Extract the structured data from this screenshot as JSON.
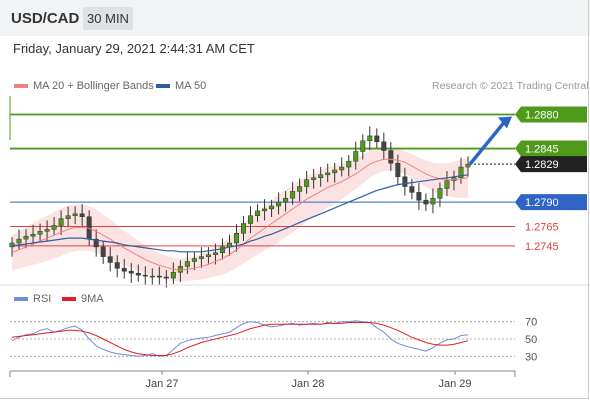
{
  "header": {
    "symbol": "USD/CAD",
    "timeframe": "30 MIN",
    "datetime": "Friday, January 29, 2021 2:44:31 AM CET"
  },
  "legend": {
    "ma20": "MA 20 + Bollinger Bands",
    "ma50": "MA 50",
    "ma20_color": "#f08080",
    "ma50_color": "#2f5f9f",
    "rsi": "RSI",
    "rsi9": "9MA",
    "rsi_color": "#6b8ed6",
    "rsi9_color": "#e02020"
  },
  "watermark": "Research © 2021 Trading Central",
  "chart_data": {
    "type": "candlestick",
    "x_ticks": [
      "Jan 27",
      "Jan 28",
      "Jan 29"
    ],
    "y_range": [
      1.271,
      1.29
    ],
    "last_price": 1.2829,
    "levels": [
      {
        "value": 1.288,
        "label": "1.2880",
        "kind": "resistance",
        "color": "#4f9a1a"
      },
      {
        "value": 1.2845,
        "label": "1.2845",
        "kind": "resistance",
        "color": "#4f9a1a"
      },
      {
        "value": 1.2829,
        "label": "1.2829",
        "kind": "last",
        "color": "#222222"
      },
      {
        "value": 1.279,
        "label": "1.2790",
        "kind": "pivot",
        "color": "#2e64c4"
      },
      {
        "value": 1.2765,
        "label": "1.2765",
        "kind": "support",
        "color": "#e04040"
      },
      {
        "value": 1.2745,
        "label": "1.2745",
        "kind": "support",
        "color": "#e04040"
      }
    ],
    "close": [
      1.2748,
      1.2752,
      1.2755,
      1.2757,
      1.276,
      1.2762,
      1.2766,
      1.2773,
      1.2776,
      1.2778,
      1.2775,
      1.2752,
      1.2744,
      1.2734,
      1.2728,
      1.2722,
      1.2719,
      1.2717,
      1.2715,
      1.2714,
      1.2714,
      1.2713,
      1.2712,
      1.2718,
      1.2724,
      1.2729,
      1.2732,
      1.2734,
      1.2736,
      1.2738,
      1.2744,
      1.2748,
      1.2758,
      1.2768,
      1.2776,
      1.2781,
      1.2783,
      1.2786,
      1.279,
      1.2794,
      1.2801,
      1.2806,
      1.2813,
      1.2815,
      1.2818,
      1.282,
      1.2823,
      1.2826,
      1.2832,
      1.2842,
      1.2853,
      1.2858,
      1.2852,
      1.2843,
      1.283,
      1.2816,
      1.2806,
      1.28,
      1.2792,
      1.2788,
      1.2794,
      1.2804,
      1.2812,
      1.2815,
      1.2826,
      1.2829
    ],
    "ma20": [
      1.2738,
      1.2741,
      1.2744,
      1.2747,
      1.275,
      1.2753,
      1.2756,
      1.2759,
      1.2762,
      1.2764,
      1.2764,
      1.2763,
      1.276,
      1.2756,
      1.2752,
      1.2747,
      1.2743,
      1.2739,
      1.2735,
      1.2731,
      1.2728,
      1.2725,
      1.2723,
      1.2721,
      1.272,
      1.2721,
      1.2722,
      1.2724,
      1.2726,
      1.2729,
      1.2732,
      1.2736,
      1.2741,
      1.2747,
      1.2753,
      1.2758,
      1.2763,
      1.2768,
      1.2773,
      1.2778,
      1.2783,
      1.2788,
      1.2793,
      1.2797,
      1.2801,
      1.2805,
      1.2808,
      1.2811,
      1.2815,
      1.2819,
      1.2824,
      1.2829,
      1.2832,
      1.2834,
      1.2834,
      1.2833,
      1.2831,
      1.2827,
      1.2823,
      1.2819,
      1.2816,
      1.2814,
      1.2813,
      1.2813,
      1.2814,
      1.2815
    ],
    "ma50": [
      1.2745,
      1.2746,
      1.2747,
      1.2748,
      1.2749,
      1.275,
      1.2751,
      1.2752,
      1.2753,
      1.2753,
      1.2753,
      1.2752,
      1.2751,
      1.275,
      1.2749,
      1.2748,
      1.2746,
      1.2745,
      1.2744,
      1.2743,
      1.2742,
      1.2741,
      1.274,
      1.274,
      1.2739,
      1.2739,
      1.2739,
      1.2739,
      1.274,
      1.2741,
      1.2742,
      1.2744,
      1.2745,
      1.2747,
      1.275,
      1.2752,
      1.2755,
      1.2757,
      1.276,
      1.2763,
      1.2766,
      1.2769,
      1.2772,
      1.2775,
      1.2778,
      1.2781,
      1.2784,
      1.2787,
      1.279,
      1.2793,
      1.2796,
      1.2799,
      1.2802,
      1.2804,
      1.2806,
      1.2808,
      1.2809,
      1.281,
      1.2811,
      1.2812,
      1.2813,
      1.2814,
      1.2815,
      1.2816,
      1.2817,
      1.2818
    ],
    "band_width": 0.0018,
    "rsi": {
      "levels": [
        70,
        50,
        30
      ],
      "rsi": [
        48,
        52,
        55,
        56,
        60,
        62,
        58,
        60,
        63,
        65,
        60,
        50,
        42,
        38,
        35,
        33,
        32,
        31,
        30,
        31,
        33,
        30,
        31,
        38,
        45,
        48,
        50,
        51,
        52,
        54,
        56,
        58,
        63,
        68,
        70,
        69,
        66,
        64,
        65,
        67,
        68,
        66,
        67,
        68,
        67,
        69,
        68,
        70,
        70,
        71,
        70,
        69,
        63,
        58,
        50,
        45,
        42,
        40,
        38,
        36,
        40,
        45,
        49,
        50,
        54,
        55
      ],
      "ma9": [
        52,
        53,
        54,
        55,
        56,
        57,
        58,
        59,
        60,
        60,
        59,
        57,
        54,
        50,
        46,
        42,
        38,
        35,
        33,
        32,
        31,
        31,
        31,
        33,
        36,
        40,
        43,
        46,
        48,
        50,
        52,
        54,
        56,
        59,
        62,
        64,
        66,
        67,
        67,
        67,
        67,
        67,
        67,
        67,
        67,
        68,
        68,
        68,
        69,
        69,
        69,
        69,
        68,
        66,
        63,
        60,
        56,
        52,
        49,
        46,
        44,
        43,
        43,
        44,
        46,
        48
      ]
    }
  }
}
